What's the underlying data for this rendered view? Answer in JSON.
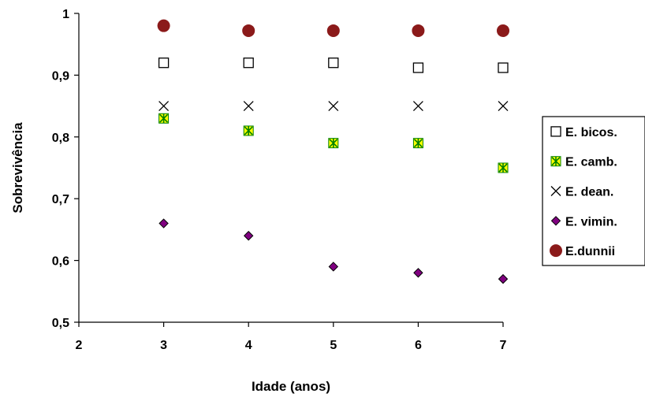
{
  "chart_data": {
    "type": "scatter",
    "title": "",
    "xlabel": "Idade (anos)",
    "ylabel": "Sobrevivência",
    "xlim": [
      2,
      7
    ],
    "ylim": [
      0.5,
      1
    ],
    "x_ticks": [
      "2",
      "3",
      "4",
      "5",
      "6",
      "7"
    ],
    "y_ticks": [
      "0,5",
      "0,6",
      "0,7",
      "0,8",
      "0,9",
      "1"
    ],
    "grid": false,
    "legend_position": "right",
    "series": [
      {
        "name": "E. bicos.",
        "marker": "open-square",
        "color": "#000000",
        "x": [
          3,
          4,
          5,
          6,
          7
        ],
        "y": [
          0.92,
          0.92,
          0.92,
          0.912,
          0.912
        ]
      },
      {
        "name": "E. camb.",
        "marker": "square-star",
        "color": "#ffff00",
        "edge_color": "#008000",
        "x": [
          3,
          4,
          5,
          6,
          7
        ],
        "y": [
          0.83,
          0.81,
          0.79,
          0.79,
          0.75
        ]
      },
      {
        "name": "E. dean.",
        "marker": "x",
        "color": "#000000",
        "x": [
          3,
          4,
          5,
          6,
          7
        ],
        "y": [
          0.85,
          0.85,
          0.85,
          0.85,
          0.85
        ]
      },
      {
        "name": "E. vimin.",
        "marker": "diamond",
        "color": "#800080",
        "edge_color": "#000000",
        "x": [
          3,
          4,
          5,
          6,
          7
        ],
        "y": [
          0.66,
          0.64,
          0.59,
          0.58,
          0.57
        ]
      },
      {
        "name": "E.dunnii",
        "marker": "circle",
        "color": "#8b1a1a",
        "x": [
          3,
          4,
          5,
          6,
          7
        ],
        "y": [
          0.98,
          0.972,
          0.972,
          0.972,
          0.972
        ]
      }
    ]
  }
}
